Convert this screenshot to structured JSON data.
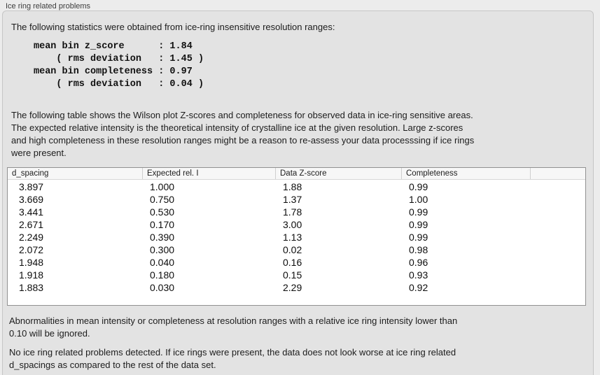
{
  "panel": {
    "title": "Ice ring related problems"
  },
  "intro": {
    "text": "The following statistics were obtained from ice-ring insensitive resolution ranges:"
  },
  "stats_block": {
    "text": "mean bin z_score      : 1.84\n    ( rms deviation   : 1.45 )\nmean bin completeness : 0.97\n    ( rms deviation   : 0.04 )"
  },
  "description": {
    "text": "The following table shows the Wilson plot Z-scores and completeness for observed data in ice-ring sensitive areas.\nThe expected relative intensity is the theoretical intensity of crystalline ice at the given resolution. Large z-scores\nand high completeness in these resolution ranges might be a reason to re-assess your data processsing if ice rings\nwere present."
  },
  "table": {
    "columns": [
      "d_spacing",
      "Expected rel. I",
      "Data Z-score",
      "Completeness"
    ],
    "rows": [
      [
        "3.897",
        "1.000",
        "1.88",
        "0.99"
      ],
      [
        "3.669",
        "0.750",
        "1.37",
        "1.00"
      ],
      [
        "3.441",
        "0.530",
        "1.78",
        "0.99"
      ],
      [
        "2.671",
        "0.170",
        "3.00",
        "0.99"
      ],
      [
        "2.249",
        "0.390",
        "1.13",
        "0.99"
      ],
      [
        "2.072",
        "0.300",
        "0.02",
        "0.98"
      ],
      [
        "1.948",
        "0.040",
        "0.16",
        "0.96"
      ],
      [
        "1.918",
        "0.180",
        "0.15",
        "0.93"
      ],
      [
        "1.883",
        "0.030",
        "2.29",
        "0.92"
      ]
    ]
  },
  "notes": {
    "ignore_note": "Abnormalities in mean intensity or completeness at resolution ranges with a relative ice ring intensity lower than\n0.10 will be ignored.",
    "conclusion": "No ice ring related problems detected. If ice rings were present, the data does not look worse at ice ring related\nd_spacings as compared to the rest of the data set."
  }
}
